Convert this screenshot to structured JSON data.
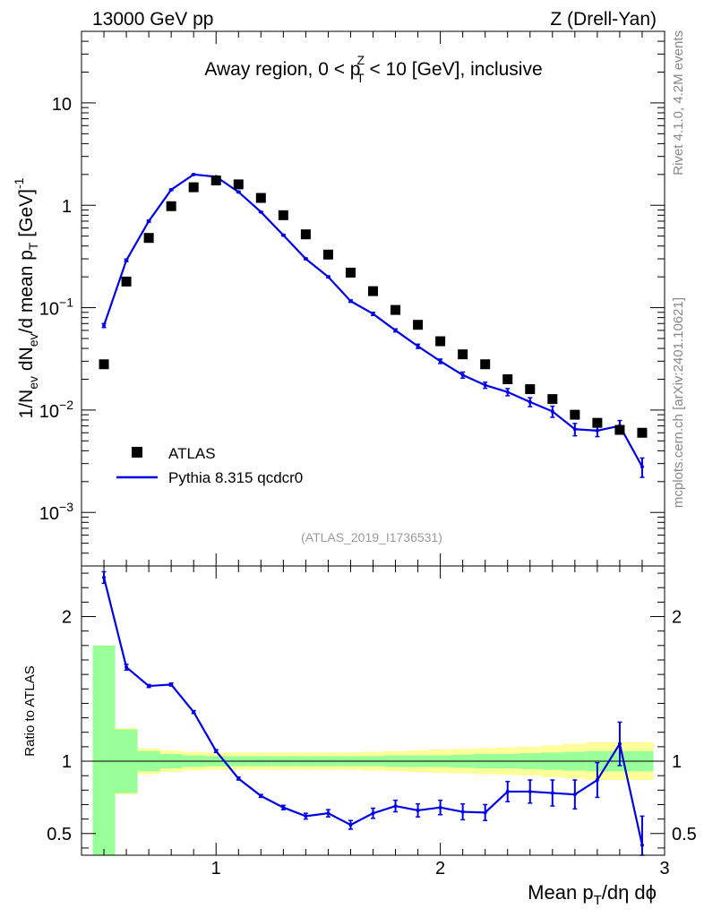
{
  "header": {
    "left": "13000 GeV pp",
    "right": "Z (Drell-Yan)"
  },
  "side_labels": {
    "rivet": "Rivet 4.1.0,  4.2M events",
    "mcplots": "mcplots.cern.ch [arXiv:2401.10621]"
  },
  "chart_data": {
    "type": "scatter",
    "title_main": "Away region, 0 < p",
    "title_sup": "Z",
    "title_sub": "T",
    "title_rest": " < 10 [GeV], inclusive",
    "analysis_id": "(ATLAS_2019_I1736531)",
    "xlabel_main": "Mean p",
    "xlabel_sub": "T",
    "xlabel_rest": "/dη dϕ",
    "ylabel_main": "1/N",
    "ylabel_sub1": "ev",
    "ylabel_mid": " dN",
    "ylabel_sub2": "ev",
    "ylabel_mid2": "/d mean p",
    "ylabel_sub3": "T",
    "ylabel_rest": " [GeV]",
    "ylabel_sup": "-1",
    "ratio_ylabel": "Ratio to ATLAS",
    "xlim": [
      0.4,
      3.0
    ],
    "ylim": [
      0.0003,
      50
    ],
    "ratio_ylim": [
      0.35,
      2.35
    ],
    "x_ticks": [
      "1",
      "2",
      "3"
    ],
    "x_tick_values": [
      1,
      2,
      3
    ],
    "y_ticks": [
      {
        "value": 10,
        "base": "10",
        "exp": ""
      },
      {
        "value": 1,
        "base": "1",
        "exp": ""
      },
      {
        "value": 0.1,
        "base": "10",
        "exp": "−1"
      },
      {
        "value": 0.01,
        "base": "10",
        "exp": "−2"
      },
      {
        "value": 0.001,
        "base": "10",
        "exp": "−3"
      }
    ],
    "ratio_ticks": [
      "0.5",
      "1",
      "2"
    ],
    "ratio_tick_values": [
      0.5,
      1,
      2
    ],
    "legend": {
      "data_label": "ATLAS",
      "mc_label": "Pythia 8.315 qcdcr0"
    },
    "x": [
      0.5,
      0.6,
      0.7,
      0.8,
      0.9,
      1.0,
      1.1,
      1.2,
      1.3,
      1.4,
      1.5,
      1.6,
      1.7,
      1.8,
      1.9,
      2.0,
      2.1,
      2.2,
      2.3,
      2.4,
      2.5,
      2.6,
      2.7,
      2.8,
      2.9
    ],
    "series": [
      {
        "name": "ATLAS",
        "values": [
          0.028,
          0.18,
          0.48,
          0.98,
          1.5,
          1.75,
          1.6,
          1.18,
          0.8,
          0.52,
          0.33,
          0.22,
          0.145,
          0.095,
          0.068,
          0.047,
          0.035,
          0.028,
          0.02,
          0.016,
          0.0128,
          0.009,
          0.0075,
          0.0064,
          0.006
        ]
      },
      {
        "name": "Pythia 8.315 qcdcr0",
        "values": [
          0.067,
          0.29,
          0.7,
          1.42,
          2.0,
          1.9,
          1.35,
          0.86,
          0.51,
          0.3,
          0.2,
          0.116,
          0.087,
          0.06,
          0.042,
          0.03,
          0.022,
          0.0175,
          0.015,
          0.012,
          0.0097,
          0.0065,
          0.0063,
          0.007,
          0.0028
        ],
        "errors": [
          0.003,
          0.008,
          0.015,
          0.02,
          0.02,
          0.02,
          0.02,
          0.01,
          0.008,
          0.005,
          0.004,
          0.003,
          0.003,
          0.002,
          0.002,
          0.0015,
          0.0015,
          0.0012,
          0.0012,
          0.0012,
          0.0012,
          0.0009,
          0.0008,
          0.0009,
          0.0006
        ]
      }
    ],
    "ratio": {
      "values": [
        2.27,
        1.65,
        1.52,
        1.53,
        1.34,
        1.07,
        0.88,
        0.76,
        0.68,
        0.62,
        0.64,
        0.56,
        0.64,
        0.69,
        0.66,
        0.68,
        0.65,
        0.645,
        0.79,
        0.79,
        0.78,
        0.77,
        0.87,
        1.12,
        0.42
      ],
      "errors": [
        0.04,
        0.02,
        0.01,
        0.01,
        0.01,
        0.01,
        0.01,
        0.01,
        0.015,
        0.02,
        0.025,
        0.03,
        0.035,
        0.04,
        0.045,
        0.05,
        0.055,
        0.055,
        0.07,
        0.08,
        0.09,
        0.1,
        0.12,
        0.15,
        0.2
      ],
      "band_edges": [
        0.45,
        0.55,
        0.65,
        0.75,
        0.85,
        0.95,
        1.05,
        1.15,
        1.25,
        1.35,
        1.45,
        1.55,
        1.65,
        1.75,
        1.85,
        1.95,
        2.05,
        2.15,
        2.25,
        2.35,
        2.45,
        2.55,
        2.65,
        2.75,
        2.85,
        2.95
      ],
      "inner_band": [
        0.8,
        0.22,
        0.07,
        0.05,
        0.04,
        0.035,
        0.035,
        0.035,
        0.035,
        0.035,
        0.035,
        0.035,
        0.035,
        0.04,
        0.04,
        0.04,
        0.045,
        0.05,
        0.05,
        0.055,
        0.06,
        0.065,
        0.07,
        0.07,
        0.07
      ],
      "outer_band": [
        0.8,
        0.23,
        0.09,
        0.075,
        0.065,
        0.06,
        0.06,
        0.06,
        0.06,
        0.06,
        0.06,
        0.06,
        0.065,
        0.07,
        0.075,
        0.08,
        0.085,
        0.09,
        0.095,
        0.1,
        0.11,
        0.12,
        0.13,
        0.13,
        0.13
      ]
    },
    "colors": {
      "data": "#000000",
      "mc": "#0000e6",
      "band_inner": "#99ff99",
      "band_outer": "#ffff99",
      "side_text": "#888888",
      "analysis_text": "#9a9a9a"
    }
  }
}
